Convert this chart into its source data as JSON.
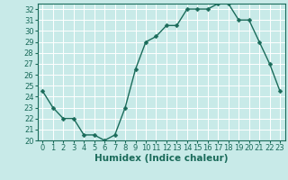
{
  "x": [
    0,
    1,
    2,
    3,
    4,
    5,
    6,
    7,
    8,
    9,
    10,
    11,
    12,
    13,
    14,
    15,
    16,
    17,
    18,
    19,
    20,
    21,
    22,
    23
  ],
  "y": [
    24.5,
    23.0,
    22.0,
    22.0,
    20.5,
    20.5,
    20.0,
    20.5,
    23.0,
    26.5,
    29.0,
    29.5,
    30.5,
    30.5,
    32.0,
    32.0,
    32.0,
    32.5,
    32.5,
    31.0,
    31.0,
    29.0,
    27.0,
    24.5
  ],
  "line_color": "#1a6b5a",
  "marker": "D",
  "markersize": 2.5,
  "bg_color": "#c8eae8",
  "grid_color": "#ffffff",
  "xlabel": "Humidex (Indice chaleur)",
  "ylim": [
    20,
    32.5
  ],
  "yticks": [
    20,
    21,
    22,
    23,
    24,
    25,
    26,
    27,
    28,
    29,
    30,
    31,
    32
  ],
  "xlim": [
    -0.5,
    23.5
  ],
  "xticks": [
    0,
    1,
    2,
    3,
    4,
    5,
    6,
    7,
    8,
    9,
    10,
    11,
    12,
    13,
    14,
    15,
    16,
    17,
    18,
    19,
    20,
    21,
    22,
    23
  ],
  "tick_color": "#1a6b5a",
  "label_color": "#1a6b5a",
  "xlabel_fontsize": 7.5,
  "tick_fontsize": 6,
  "linewidth": 1.0
}
